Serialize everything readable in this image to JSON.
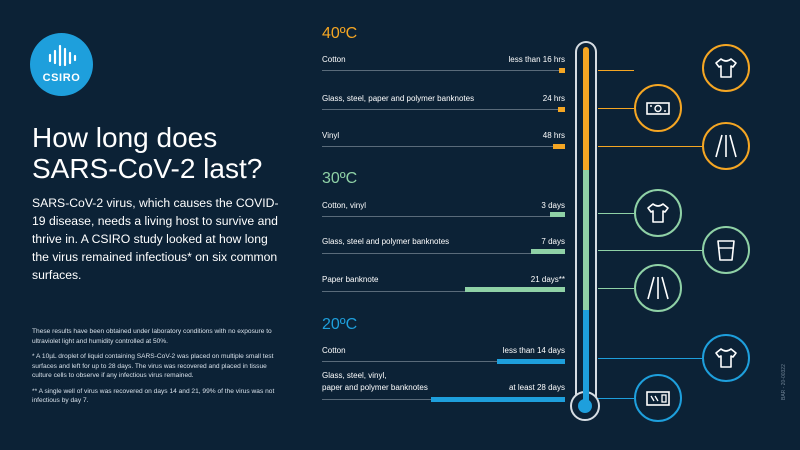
{
  "brand": {
    "logo_text": "CSIRO"
  },
  "heading": {
    "line1": "How long does",
    "line2": "SARS-CoV-2 last?"
  },
  "intro": "SARS-CoV-2 virus, which causes the COVID-19 disease, needs a living host to survive and thrive in. A CSIRO study looked at how long the virus remained infectious* on six common surfaces.",
  "notes": [
    "These results have been obtained under laboratory conditions with no exposure to ultraviolet light and humidity controlled at 50%.",
    "* A 10µL droplet of liquid containing SARS-CoV-2 was placed on multiple small test surfaces and left for up to 28 days. The virus was recovered and placed in tissue culture cells to observe if any infectious virus remained.",
    "** A single well of virus was recovered on days 14 and 21, 99% of the virus was not infectious by day 7."
  ],
  "side_code": "BAR - 20-00322",
  "colors": {
    "background": "#0c2236",
    "hot": "#f5a623",
    "warm": "#8fd1a6",
    "cool": "#1e9fdc"
  },
  "groups": [
    {
      "temperature": "40ºC",
      "color": "#f5a623",
      "rows": [
        {
          "label": "Cotton",
          "value": "less than 16 hrs",
          "fraction": 0.02
        },
        {
          "label": "Glass, steel, paper and polymer banknotes",
          "value": "24 hrs",
          "fraction": 0.03
        },
        {
          "label": "Vinyl",
          "value": "48 hrs",
          "fraction": 0.05
        }
      ]
    },
    {
      "temperature": "30ºC",
      "color": "#8fd1a6",
      "rows": [
        {
          "label": "Cotton, vinyl",
          "value": "3 days",
          "fraction": 0.06
        },
        {
          "label": "Glass, steel and polymer banknotes",
          "value": "7 days",
          "fraction": 0.14
        },
        {
          "label": "Paper banknote",
          "value": "21 days**",
          "fraction": 0.41
        }
      ]
    },
    {
      "temperature": "20ºC",
      "color": "#1e9fdc",
      "rows": [
        {
          "label": "Cotton",
          "value": "less than 14 days",
          "fraction": 0.28
        },
        {
          "label": "Glass, steel, vinyl,",
          "label2": "paper and polymer banknotes",
          "value": "at least 28 days",
          "fraction": 0.55
        }
      ]
    }
  ],
  "icons": [
    {
      "name": "tshirt-icon",
      "color": "#f5a623"
    },
    {
      "name": "banknote-icon",
      "color": "#f5a623"
    },
    {
      "name": "vinyl-road-icon",
      "color": "#f5a623"
    },
    {
      "name": "tshirt-icon",
      "color": "#8fd1a6"
    },
    {
      "name": "glass-icon",
      "color": "#8fd1a6"
    },
    {
      "name": "paper-road-icon",
      "color": "#8fd1a6"
    },
    {
      "name": "tshirt-icon",
      "color": "#1e9fdc"
    },
    {
      "name": "card-icon",
      "color": "#1e9fdc"
    }
  ]
}
